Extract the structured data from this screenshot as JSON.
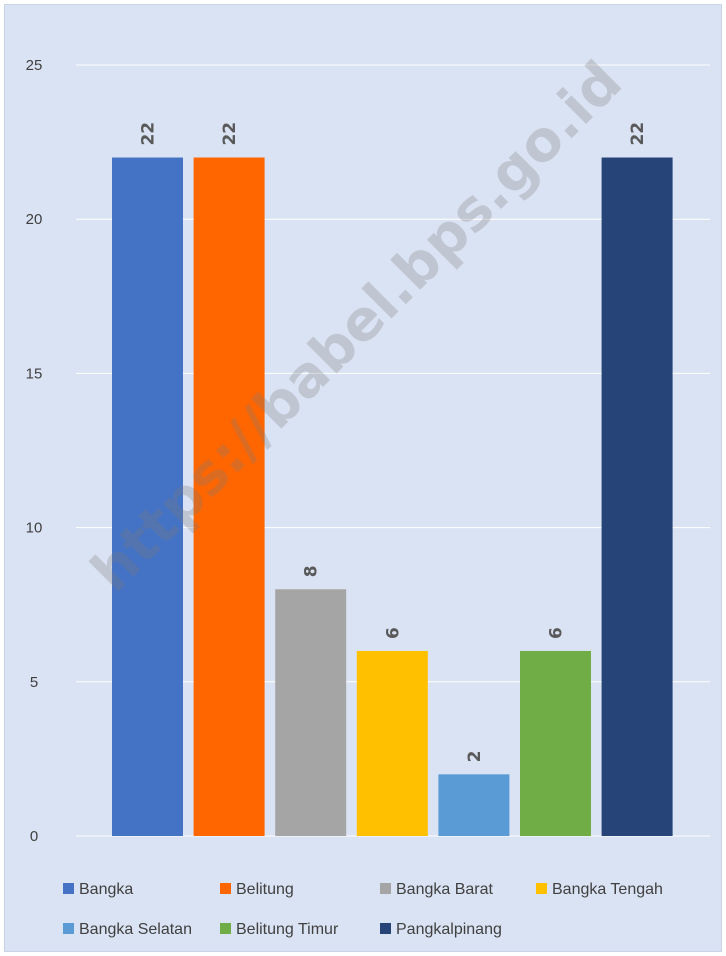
{
  "watermark": "https://babel.bps.go.id",
  "chart_data": {
    "type": "bar",
    "title": "",
    "xlabel": "",
    "ylabel": "",
    "ylim": [
      0,
      25
    ],
    "yticks": [
      0,
      5,
      10,
      15,
      20,
      25
    ],
    "grid": true,
    "legend_position": "bottom",
    "categories": [
      "Bangka",
      "Belitung",
      "Bangka Barat",
      "Bangka Tengah",
      "Bangka Selatan",
      "Belitung Timur",
      "Pangkalpinang"
    ],
    "values": [
      22,
      22,
      8,
      6,
      2,
      6,
      22
    ],
    "colors": [
      "#4472c4",
      "#ff6600",
      "#a5a5a5",
      "#ffc000",
      "#5b9bd5",
      "#70ad47",
      "#264478"
    ],
    "data_labels": [
      "22",
      "22",
      "8",
      "6",
      "2",
      "6",
      "22"
    ],
    "background_color": "#dae3f3"
  }
}
